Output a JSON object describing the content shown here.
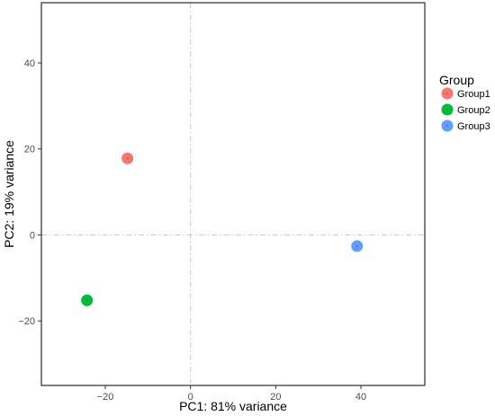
{
  "chart_data": {
    "type": "scatter",
    "xlabel": "PC1: 81% variance",
    "ylabel": "PC2: 19% variance",
    "xlim": [
      -35,
      55
    ],
    "ylim": [
      -35,
      54
    ],
    "x_ticks": [
      -20,
      0,
      20,
      40
    ],
    "x_tick_labels": [
      "−20",
      "0",
      "20",
      "40"
    ],
    "y_ticks": [
      -20,
      0,
      20,
      40
    ],
    "y_tick_labels": [
      "−20",
      "0",
      "20",
      "40"
    ],
    "reference_lines": {
      "x": 0,
      "y": 0,
      "style": "dashdot"
    },
    "grid": false,
    "legend": {
      "title": "Group",
      "placement": "right"
    },
    "series": [
      {
        "name": "Group1",
        "color": "#F8766D",
        "points": [
          {
            "x": -14.8,
            "y": 17.8
          }
        ]
      },
      {
        "name": "Group2",
        "color": "#00BA38",
        "points": [
          {
            "x": -24.3,
            "y": -15.2
          }
        ]
      },
      {
        "name": "Group3",
        "color": "#619CFF",
        "points": [
          {
            "x": 39.1,
            "y": -2.6
          }
        ]
      }
    ]
  }
}
